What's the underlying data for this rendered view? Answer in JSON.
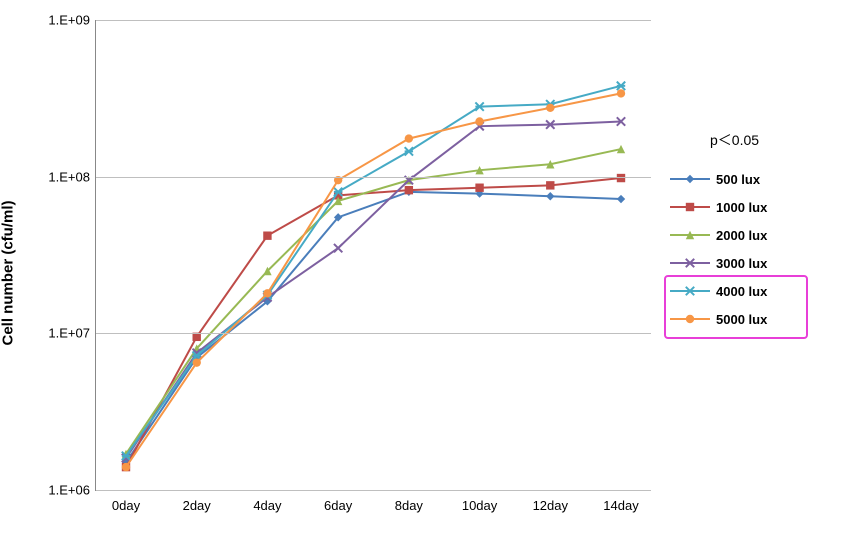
{
  "chart": {
    "type": "line",
    "ylabel": "Cell number (cfu/ml)",
    "ylabel_fontsize": 15,
    "categories": [
      "0day",
      "2day",
      "4day",
      "6day",
      "8day",
      "10day",
      "12day",
      "14day"
    ],
    "yscale": "log",
    "ylim": [
      1000000,
      1000000000
    ],
    "yticks": [
      1000000,
      10000000,
      100000000,
      1000000000
    ],
    "ytick_labels": [
      "1.E+06",
      "1.E+07",
      "1.E+08",
      "1.E+09"
    ],
    "grid_color": "#bfbfbf",
    "axis_color": "#888888",
    "background_color": "#ffffff",
    "line_width": 2,
    "marker_size": 6,
    "label_fontsize": 13,
    "p_note": "p＜0.05",
    "series": [
      {
        "name": "500 lux",
        "color": "#4a7ebb",
        "marker": "diamond",
        "values": [
          1500000,
          7000000,
          16000000,
          55000000,
          80000000,
          78000000,
          75000000,
          72000000
        ]
      },
      {
        "name": "1000 lux",
        "color": "#be4b48",
        "marker": "square",
        "values": [
          1400000,
          9500000,
          42000000,
          76000000,
          82000000,
          85000000,
          88000000,
          98000000
        ]
      },
      {
        "name": "2000 lux",
        "color": "#98b954",
        "marker": "triangle",
        "values": [
          1700000,
          8000000,
          25000000,
          70000000,
          95000000,
          110000000,
          120000000,
          150000000
        ]
      },
      {
        "name": "3000 lux",
        "color": "#7d60a0",
        "marker": "x",
        "values": [
          1600000,
          7500000,
          17000000,
          35000000,
          95000000,
          210000000,
          215000000,
          225000000
        ]
      },
      {
        "name": "4000 lux",
        "color": "#46aac5",
        "marker": "asterisk",
        "values": [
          1650000,
          7200000,
          17500000,
          80000000,
          145000000,
          280000000,
          290000000,
          380000000
        ]
      },
      {
        "name": "5000 lux",
        "color": "#f79646",
        "marker": "circle",
        "values": [
          1400000,
          6500000,
          18000000,
          95000000,
          175000000,
          225000000,
          275000000,
          340000000
        ]
      }
    ],
    "highlight_box": {
      "color": "#e83fd8",
      "series_indices": [
        4,
        5
      ]
    }
  }
}
